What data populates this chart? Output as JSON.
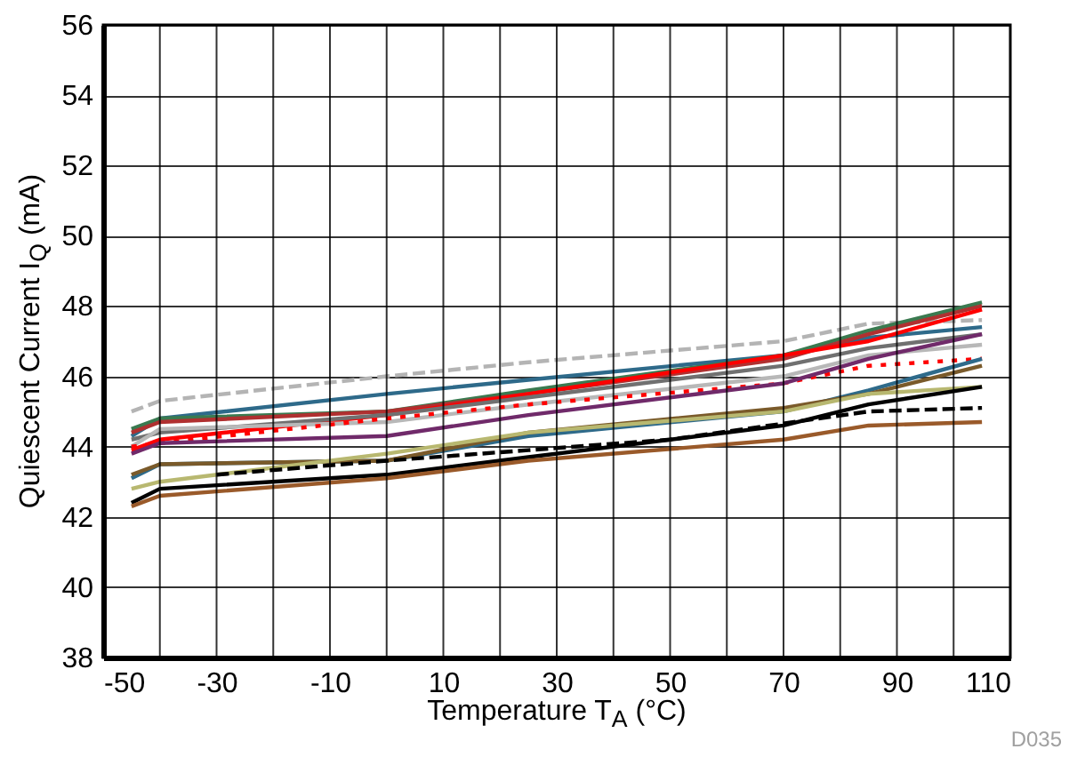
{
  "chart_data": {
    "type": "line",
    "xlabel": "Temperature T$_{A}$ (°C)",
    "ylabel": "Quiescent Current I$_{Q}$ (mA)",
    "annotations": [
      "D035"
    ],
    "x": [
      -45,
      -40,
      0,
      25,
      70,
      85,
      105
    ],
    "xlim": [
      -50,
      110
    ],
    "xticks": [
      -50,
      {
        "value": -40,
        "label": null
      },
      -30,
      {
        "value": -20,
        "label": null
      },
      -10,
      {
        "value": 0,
        "label": null
      },
      10,
      {
        "value": 20,
        "label": null
      },
      30,
      {
        "value": 40,
        "label": null
      },
      50,
      {
        "value": 60,
        "label": null
      },
      70,
      {
        "value": 80,
        "label": null
      },
      90,
      {
        "value": 100,
        "label": null
      },
      110
    ],
    "ylim": [
      38,
      56
    ],
    "yticks": [
      38,
      40,
      42,
      44,
      46,
      48,
      50,
      52,
      54,
      56
    ],
    "grid": true,
    "series": [
      {
        "color": "#b4b4b4",
        "line_style": "dashed",
        "values": [
          45.0,
          45.3,
          46.0,
          46.4,
          47.0,
          47.5,
          47.6
        ]
      },
      {
        "color": "#2e6a8a",
        "values": [
          44.3,
          44.8,
          45.5,
          45.9,
          46.6,
          47.1,
          47.4
        ]
      },
      {
        "color": "#3a7a50",
        "values": [
          44.5,
          44.8,
          45.0,
          45.6,
          46.6,
          47.3,
          48.1
        ]
      },
      {
        "color": "#b03030",
        "values": [
          44.4,
          44.7,
          45.0,
          45.5,
          46.5,
          47.2,
          48.0
        ]
      },
      {
        "color": "#ff0000",
        "values": [
          43.9,
          44.2,
          44.9,
          45.5,
          46.6,
          47.0,
          47.9
        ]
      },
      {
        "color": "#707070",
        "values": [
          44.2,
          44.4,
          44.9,
          45.4,
          46.3,
          46.8,
          47.2
        ]
      },
      {
        "color": "#b8b8b8",
        "values": [
          44.0,
          44.5,
          44.7,
          45.2,
          46.0,
          46.6,
          46.9
        ]
      },
      {
        "color": "#ff0000",
        "line_style": "dotted",
        "values": [
          44.0,
          44.1,
          44.8,
          45.2,
          45.8,
          46.3,
          46.5
        ]
      },
      {
        "color": "#702a6a",
        "values": [
          43.8,
          44.1,
          44.3,
          44.9,
          45.8,
          46.5,
          47.2
        ]
      },
      {
        "color": "#2e6a8a",
        "values": [
          43.1,
          43.5,
          43.6,
          44.3,
          45.0,
          45.6,
          46.5
        ]
      },
      {
        "color": "#7a5a2a",
        "values": [
          43.2,
          43.5,
          43.6,
          44.4,
          45.1,
          45.5,
          46.3
        ]
      },
      {
        "color": "#b8b870",
        "values": [
          42.8,
          43.0,
          43.8,
          44.4,
          45.0,
          45.5,
          45.7
        ]
      },
      {
        "color": "#000000",
        "values": [
          42.4,
          42.8,
          43.2,
          43.7,
          44.6,
          45.2,
          45.7
        ]
      },
      {
        "color": "#9a5a2a",
        "values": [
          42.3,
          42.6,
          43.1,
          43.6,
          44.2,
          44.6,
          44.7
        ]
      },
      {
        "color": "#000000",
        "line_style": "dashed",
        "x": [
          -30,
          0,
          25,
          50,
          85,
          105
        ],
        "values": [
          43.2,
          43.6,
          43.9,
          44.2,
          45.0,
          45.1
        ]
      }
    ]
  }
}
